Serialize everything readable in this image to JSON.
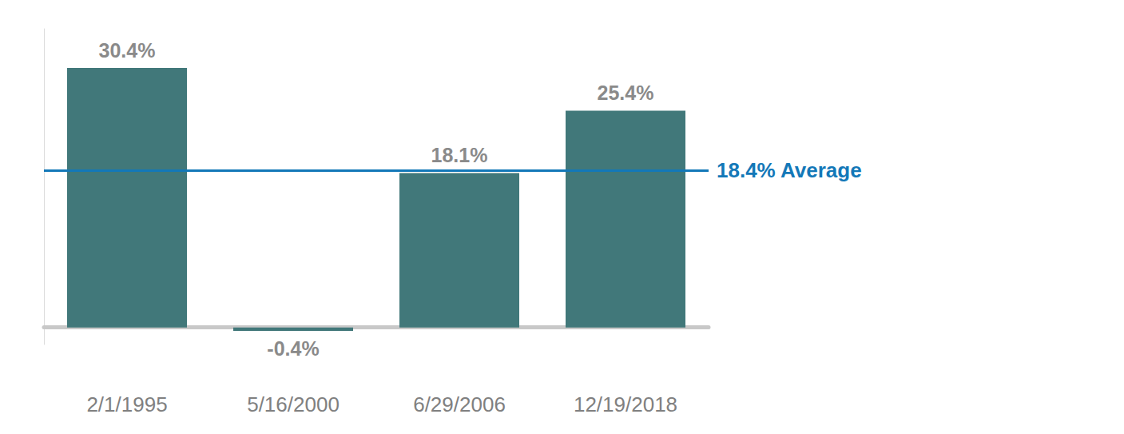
{
  "chart_data": {
    "type": "bar",
    "categories": [
      "2/1/1995",
      "5/16/2000",
      "6/29/2006",
      "12/19/2018"
    ],
    "values": [
      30.4,
      -0.4,
      18.1,
      25.4
    ],
    "value_labels": [
      "30.4%",
      "-0.4%",
      "18.1%",
      "25.4%"
    ],
    "color": "#41787a",
    "data_labels": true,
    "tick_labels": "x",
    "grid": false,
    "ylim": [
      -2,
      35
    ],
    "average": {
      "value": 18.4,
      "label": "18.4% Average",
      "color": "#1378b8"
    }
  }
}
